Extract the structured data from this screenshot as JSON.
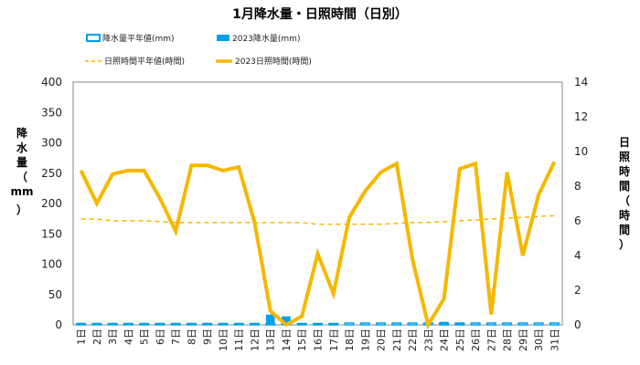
{
  "chart_data": {
    "type": "bar+line",
    "title": "1月降水量・日照時間（日別）",
    "categories": [
      "1日",
      "2日",
      "3日",
      "4日",
      "5日",
      "6日",
      "7日",
      "8日",
      "9日",
      "10日",
      "11日",
      "12日",
      "13日",
      "14日",
      "15日",
      "16日",
      "17日",
      "18日",
      "19日",
      "20日",
      "21日",
      "22日",
      "23日",
      "24日",
      "25日",
      "26日",
      "27日",
      "28日",
      "29日",
      "30日",
      "31日"
    ],
    "y_left": {
      "label_chars": [
        "降",
        "水",
        "量",
        "（",
        "mm",
        "）"
      ],
      "range": [
        0,
        400
      ],
      "ticks": [
        0,
        50,
        100,
        150,
        200,
        250,
        300,
        350,
        400
      ]
    },
    "y_right": {
      "label_chars": [
        "日",
        "照",
        "時",
        "間",
        "（",
        "時",
        "間",
        "）"
      ],
      "range": [
        0,
        14
      ],
      "ticks": [
        0,
        2,
        4,
        6,
        8,
        10,
        12,
        14
      ]
    },
    "legend": [
      {
        "name": "降水量平年値(mm)",
        "style": "outlined-box"
      },
      {
        "name": "2023降水量(mm)",
        "style": "filled-box"
      },
      {
        "name": "日照時間平年値(時間)",
        "style": "dashed-line"
      },
      {
        "name": "2023日照時間(時間)",
        "style": "solid-line"
      }
    ],
    "series": [
      {
        "name": "降水量平年値(mm)",
        "axis": "left",
        "kind": "bar-outline",
        "values": [
          2,
          2,
          2,
          2,
          2,
          2,
          2,
          2,
          2,
          2,
          2,
          2,
          2,
          2,
          2,
          2,
          2,
          3,
          3,
          3,
          3,
          3,
          3,
          3,
          3,
          3,
          3,
          3,
          3,
          3,
          3
        ]
      },
      {
        "name": "2023降水量(mm)",
        "axis": "left",
        "kind": "bar",
        "values": [
          0,
          0,
          0,
          0,
          0,
          0,
          0,
          0,
          0,
          0,
          0,
          0,
          17,
          14,
          0,
          0,
          0,
          0,
          0,
          0,
          0,
          0,
          1,
          5,
          3,
          0,
          0,
          0,
          0,
          0,
          0
        ]
      },
      {
        "name": "日照時間平年値(時間)",
        "axis": "right",
        "kind": "dashed-line",
        "values": [
          6.1,
          6.1,
          6.0,
          6.0,
          6.0,
          5.95,
          5.9,
          5.9,
          5.9,
          5.9,
          5.9,
          5.9,
          5.9,
          5.9,
          5.9,
          5.8,
          5.8,
          5.8,
          5.8,
          5.8,
          5.85,
          5.9,
          5.9,
          5.95,
          6.0,
          6.05,
          6.1,
          6.15,
          6.2,
          6.25,
          6.3
        ]
      },
      {
        "name": "2023日照時間(時間)",
        "axis": "right",
        "kind": "solid-line",
        "values": [
          8.9,
          7.0,
          8.7,
          8.9,
          8.9,
          7.3,
          5.4,
          9.2,
          9.2,
          8.9,
          9.1,
          5.9,
          0.8,
          0.0,
          0.5,
          4.1,
          1.8,
          6.2,
          7.7,
          8.8,
          9.3,
          3.8,
          0.0,
          1.5,
          9.0,
          9.3,
          0.6,
          8.8,
          4.0,
          7.5,
          9.4
        ]
      }
    ],
    "colors": {
      "precip": "#00a0e9",
      "sunshine": "#f5b800",
      "sunshine_normal": "#f5b800",
      "plot_border": "#888888"
    },
    "grid": false,
    "legend_position": "top"
  }
}
